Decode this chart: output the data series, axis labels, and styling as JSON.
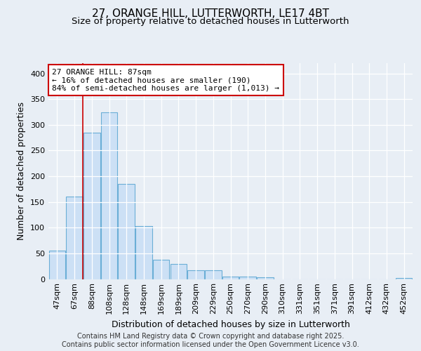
{
  "title_line1": "27, ORANGE HILL, LUTTERWORTH, LE17 4BT",
  "title_line2": "Size of property relative to detached houses in Lutterworth",
  "xlabel": "Distribution of detached houses by size in Lutterworth",
  "ylabel": "Number of detached properties",
  "categories": [
    "47sqm",
    "67sqm",
    "88sqm",
    "108sqm",
    "128sqm",
    "148sqm",
    "169sqm",
    "189sqm",
    "209sqm",
    "229sqm",
    "250sqm",
    "270sqm",
    "290sqm",
    "310sqm",
    "331sqm",
    "351sqm",
    "371sqm",
    "391sqm",
    "412sqm",
    "432sqm",
    "452sqm"
  ],
  "values": [
    55,
    160,
    285,
    325,
    185,
    103,
    37,
    30,
    17,
    17,
    5,
    5,
    3,
    0,
    0,
    0,
    0,
    0,
    0,
    0,
    2
  ],
  "bar_color": "#cce0f5",
  "bar_edge_color": "#6aaed6",
  "vline_x": 2.0,
  "annotation_text": "27 ORANGE HILL: 87sqm\n← 16% of detached houses are smaller (190)\n84% of semi-detached houses are larger (1,013) →",
  "annotation_box_color": "#ffffff",
  "annotation_box_edge_color": "#cc0000",
  "vline_color": "#cc0000",
  "ylim": [
    0,
    420
  ],
  "yticks": [
    0,
    50,
    100,
    150,
    200,
    250,
    300,
    350,
    400
  ],
  "footer_text": "Contains HM Land Registry data © Crown copyright and database right 2025.\nContains public sector information licensed under the Open Government Licence v3.0.",
  "background_color": "#e8eef5",
  "plot_bg_color": "#e8eef5",
  "grid_color": "#ffffff",
  "title_fontsize": 11,
  "subtitle_fontsize": 9.5,
  "axis_label_fontsize": 9,
  "tick_fontsize": 8,
  "annotation_fontsize": 8,
  "footer_fontsize": 7
}
